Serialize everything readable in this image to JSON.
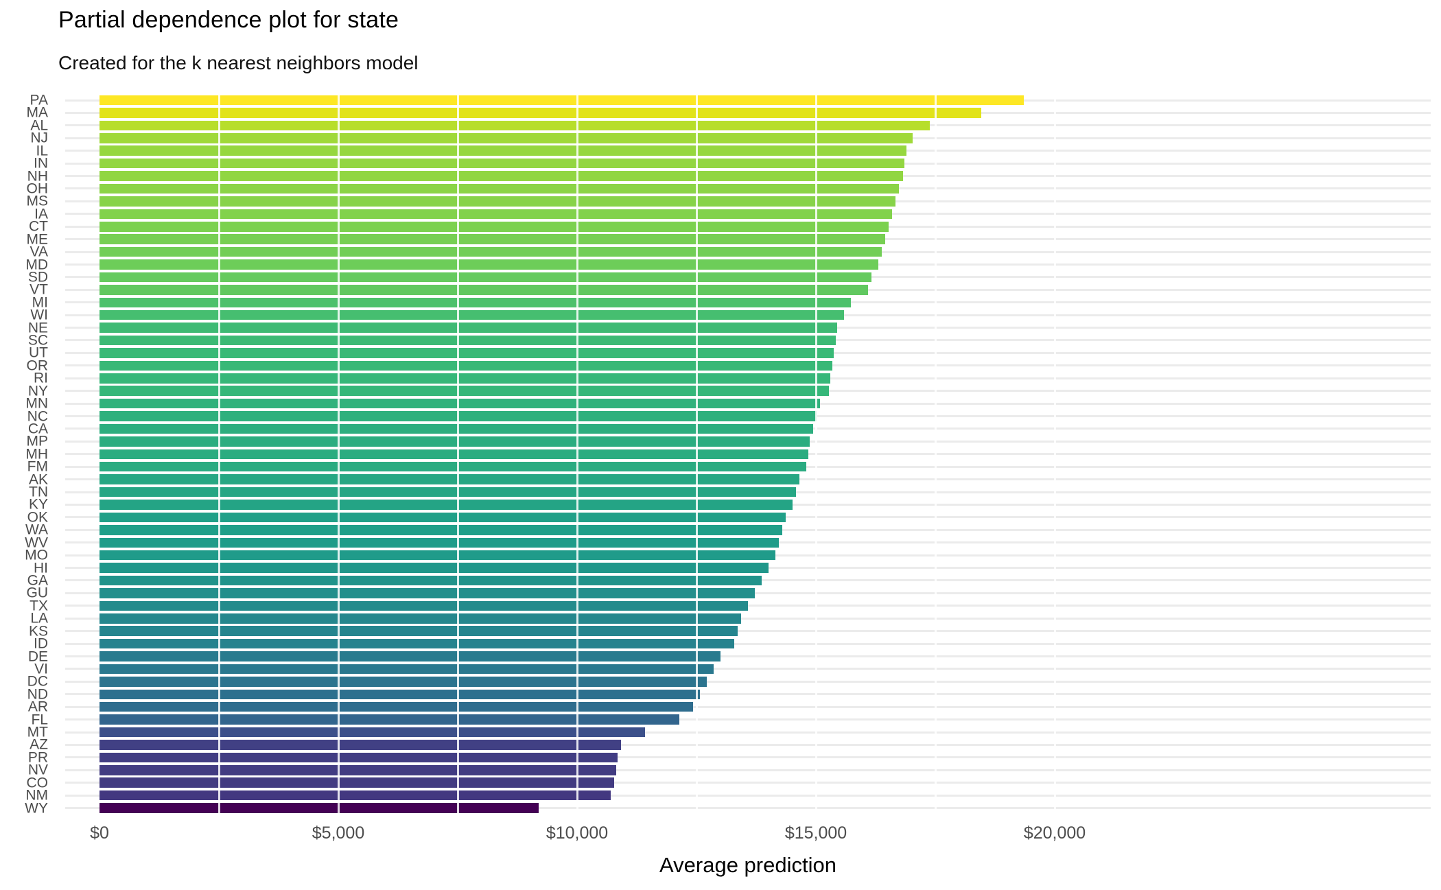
{
  "title": "Partial dependence plot for state",
  "subtitle": "Created for the k nearest neighbors model",
  "chart_data": {
    "type": "bar",
    "orientation": "horizontal",
    "title": "Partial dependence plot for state",
    "subtitle": "Created for the k nearest neighbors model",
    "xlabel": "Average prediction",
    "ylabel": "",
    "grid": "on",
    "legend": "none",
    "xlim": [
      0,
      20000
    ],
    "x_tick_labels": [
      "$0",
      "$5,000",
      "$10,000",
      "$15,000",
      "$20,000"
    ],
    "x_tick_values": [
      0,
      5000,
      10000,
      15000,
      20000
    ],
    "x_minor_step": 2500,
    "sort": "descending",
    "categories": [
      "PA",
      "MA",
      "AL",
      "NJ",
      "IL",
      "IN",
      "NH",
      "OH",
      "MS",
      "IA",
      "CT",
      "ME",
      "VA",
      "MD",
      "SD",
      "VT",
      "MI",
      "WI",
      "NE",
      "SC",
      "UT",
      "OR",
      "RI",
      "NY",
      "MN",
      "NC",
      "CA",
      "MP",
      "MH",
      "FM",
      "AK",
      "TN",
      "KY",
      "OK",
      "WA",
      "WV",
      "MO",
      "HI",
      "GA",
      "GU",
      "TX",
      "LA",
      "KS",
      "ID",
      "DE",
      "VI",
      "DC",
      "ND",
      "AR",
      "FL",
      "MT",
      "AZ",
      "PR",
      "NV",
      "CO",
      "NM",
      "WY"
    ],
    "values": [
      19350,
      18460,
      17390,
      17030,
      16890,
      16850,
      16820,
      16740,
      16670,
      16600,
      16520,
      16450,
      16380,
      16310,
      16160,
      16090,
      15730,
      15590,
      15450,
      15420,
      15370,
      15340,
      15300,
      15270,
      15090,
      15010,
      14940,
      14870,
      14840,
      14800,
      14660,
      14580,
      14510,
      14370,
      14300,
      14220,
      14150,
      14010,
      13870,
      13720,
      13580,
      13430,
      13360,
      13290,
      13000,
      12860,
      12720,
      12570,
      12430,
      12140,
      11420,
      10920,
      10850,
      10820,
      10780,
      10700,
      9200
    ],
    "fill_scale": "viridis",
    "viridis_stops": [
      "#440154",
      "#482878",
      "#3E4A89",
      "#31688E",
      "#26828E",
      "#1F9E89",
      "#35B779",
      "#6DCD59",
      "#B4DE2C",
      "#DDE318",
      "#FDE725"
    ]
  },
  "style_colors": {
    "axis_text": "#4d4d4d",
    "grid_major": "#ebebeb",
    "background": "#ffffff"
  }
}
